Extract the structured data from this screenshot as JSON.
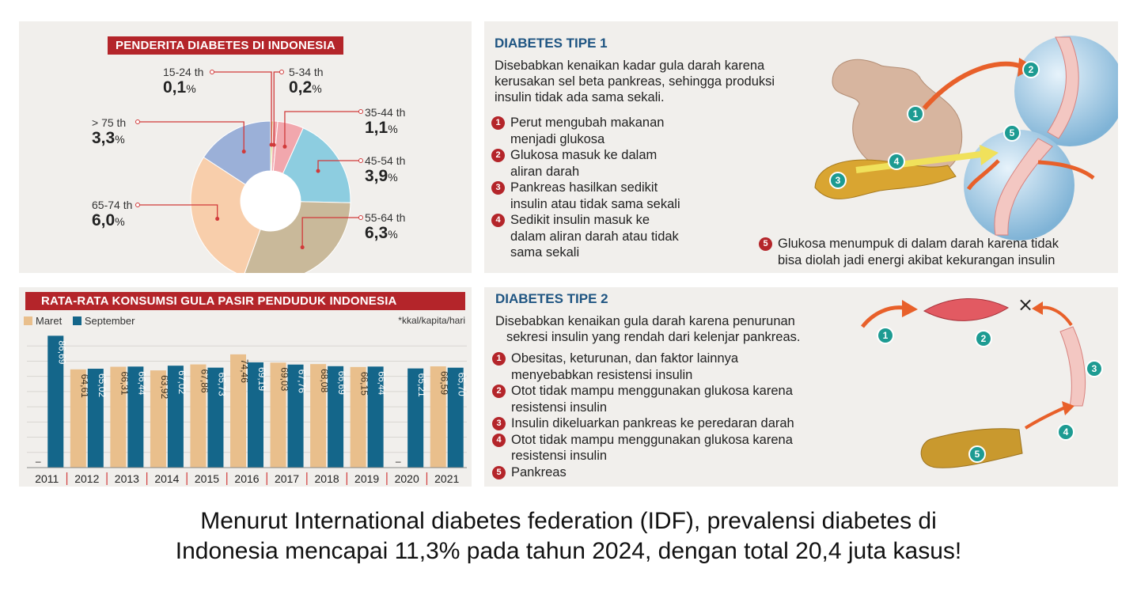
{
  "donut": {
    "title": "PENDERITA DIABETES DI INDONESIA",
    "labels": [
      {
        "age": "15-24 th",
        "pct": "0,1",
        "unit": "%"
      },
      {
        "age": "5-34 th",
        "pct": "0,2",
        "unit": "%"
      },
      {
        "age": "> 75 th",
        "pct": "3,3",
        "unit": "%"
      },
      {
        "age": "35-44 th",
        "pct": "1,1",
        "unit": "%"
      },
      {
        "age": "45-54 th",
        "pct": "3,9",
        "unit": "%"
      },
      {
        "age": "65-74 th",
        "pct": "6,0",
        "unit": "%"
      },
      {
        "age": "55-64 th",
        "pct": "6,3",
        "unit": "%"
      }
    ]
  },
  "bars": {
    "title": "RATA-RATA KONSUMSI GULA PASIR PENDUDUK INDONESIA",
    "legend_maret": "Maret",
    "legend_september": "September",
    "unit_note": "*kkal/kapita/hari"
  },
  "chart_data": [
    {
      "type": "pie",
      "title": "PENDERITA DIABETES DI INDONESIA",
      "categories": [
        "15-24 th",
        "5-34 th",
        "35-44 th",
        "45-54 th",
        "55-64 th",
        "65-74 th",
        "> 75 th"
      ],
      "values": [
        0.1,
        0.2,
        1.1,
        3.9,
        6.3,
        6.0,
        3.3
      ],
      "colors": [
        "#c8d44a",
        "#f1a7ad",
        "#f1a7ad",
        "#8dcde0",
        "#c9b99a",
        "#f8ceab",
        "#9bb0d8"
      ],
      "unit": "%"
    },
    {
      "type": "bar",
      "title": "RATA-RATA KONSUMSI GULA PASIR PENDUDUK INDONESIA",
      "categories": [
        "2011",
        "2012",
        "2013",
        "2014",
        "2015",
        "2016",
        "2017",
        "2018",
        "2019",
        "2020",
        "2021"
      ],
      "series": [
        {
          "name": "Maret",
          "color": "#e9bf8c",
          "values": [
            null,
            64.61,
            66.31,
            63.92,
            67.86,
            74.46,
            69.03,
            68.08,
            66.15,
            null,
            66.59
          ],
          "labels": [
            "–",
            "64,61",
            "66,31",
            "63,92",
            "67,86",
            "74,46",
            "69,03",
            "68,08",
            "66,15",
            "–",
            "66,59"
          ]
        },
        {
          "name": "September",
          "color": "#14668a",
          "values": [
            86.69,
            65.02,
            66.44,
            67.02,
            65.73,
            69.19,
            67.76,
            66.69,
            66.44,
            65.21,
            65.7
          ],
          "labels": [
            "86,69",
            "65,02",
            "66,44",
            "67,02",
            "65,73",
            "69,19",
            "67,76",
            "66,69",
            "66,44",
            "65,21",
            "65,70"
          ]
        }
      ],
      "ylim": [
        0,
        90
      ],
      "grid": true,
      "legend": "top-left",
      "ylabel": "*kkal/kapita/hari"
    }
  ],
  "tipe1": {
    "heading": "DIABETES TIPE 1",
    "desc": [
      "Disebabkan kenaikan kadar gula darah karena",
      "kerusakan sel beta pankreas, sehingga produksi",
      "insulin tidak ada sama sekali."
    ],
    "items": [
      {
        "n": "1",
        "lines": [
          "Perut mengubah makanan",
          "menjadi glukosa"
        ]
      },
      {
        "n": "2",
        "lines": [
          "Glukosa masuk ke dalam",
          "aliran darah"
        ]
      },
      {
        "n": "3",
        "lines": [
          "Pankreas hasilkan sedikit",
          "insulin atau tidak sama sekali"
        ]
      },
      {
        "n": "4",
        "lines": [
          "Sedikit insulin masuk ke",
          "dalam aliran darah atau tidak",
          "sama sekali"
        ]
      }
    ],
    "item5": {
      "n": "5",
      "lines": [
        "Glukosa menumpuk di dalam darah karena tidak",
        "bisa diolah jadi energi akibat kekurangan insulin"
      ]
    },
    "markers": [
      "1",
      "2",
      "3",
      "4",
      "5"
    ]
  },
  "tipe2": {
    "heading": "DIABETES TIPE 2",
    "desc": [
      "Disebabkan kenaikan gula darah karena penurunan",
      "sekresi insulin yang rendah dari kelenjar pankreas."
    ],
    "items": [
      {
        "n": "1",
        "lines": [
          "Obesitas, keturunan, dan faktor lainnya",
          "menyebabkan resistensi insulin"
        ]
      },
      {
        "n": "2",
        "lines": [
          "Otot tidak mampu menggunakan glukosa karena",
          "resistensi insulin"
        ]
      },
      {
        "n": "3",
        "lines": [
          "Insulin dikeluarkan pankreas ke peredaran darah"
        ]
      },
      {
        "n": "4",
        "lines": [
          "Otot tidak mampu menggunakan glukosa karena",
          "resistensi insulin"
        ]
      },
      {
        "n": "5",
        "lines": [
          "Pankreas"
        ]
      }
    ],
    "markers": [
      "1",
      "2",
      "3",
      "4",
      "5"
    ],
    "x_mark": "×"
  },
  "caption": {
    "line1": "Menurut International diabetes federation (IDF), prevalensi diabetes di",
    "line2": "Indonesia mencapai 11,3% pada tahun 2024, dengan total 20,4 juta kasus!"
  }
}
